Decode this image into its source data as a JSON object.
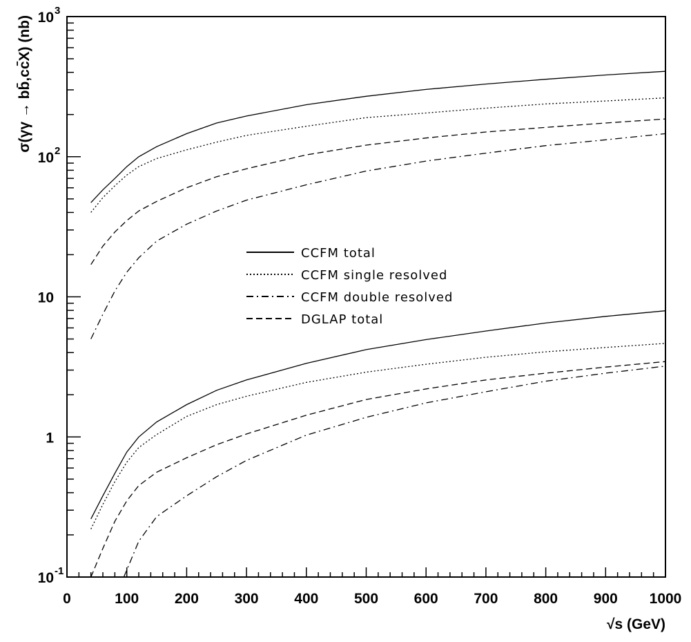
{
  "chart_data": {
    "type": "line",
    "xlabel": "√s (GeV)",
    "ylabel": "σ(γγ → bb̄,cc̄X) (nb)",
    "xlim": [
      0,
      1000
    ],
    "ylim": [
      0.1,
      1000
    ],
    "yscale": "log",
    "grid": false,
    "legend_position": "center",
    "x_ticks": [
      0,
      100,
      200,
      300,
      400,
      500,
      600,
      700,
      800,
      900,
      1000
    ],
    "x_tick_labels": [
      "0",
      "100",
      "200",
      "300",
      "400",
      "500",
      "600",
      "700",
      "800",
      "900",
      "1000"
    ],
    "y_ticks": [
      {
        "value": 0.1,
        "base": "10",
        "exp": "-1"
      },
      {
        "value": 1,
        "base": "1",
        "exp": ""
      },
      {
        "value": 10,
        "base": "10",
        "exp": ""
      },
      {
        "value": 100,
        "base": "10",
        "exp": "2"
      },
      {
        "value": 1000,
        "base": "10",
        "exp": "3"
      }
    ],
    "legend": [
      {
        "label": "CCFM total",
        "style": "solid"
      },
      {
        "label": "CCFM single resolved",
        "style": "dotted"
      },
      {
        "label": "CCFM double resolved",
        "style": "dashdot"
      },
      {
        "label": "DGLAP total",
        "style": "dashed"
      }
    ],
    "groups": [
      {
        "name": "upper",
        "series": [
          {
            "name": "CCFM total",
            "style": "solid",
            "x": [
              40,
              60,
              80,
              100,
              120,
              150,
              200,
              250,
              300,
              400,
              500,
              600,
              700,
              800,
              900,
              1000
            ],
            "y": [
              47,
              58,
              70,
              85,
              100,
              118,
              146,
              174,
              195,
              235,
              270,
              302,
              330,
              357,
              383,
              407
            ]
          },
          {
            "name": "CCFM single resolved",
            "style": "dotted",
            "x": [
              40,
              60,
              80,
              100,
              120,
              150,
              200,
              250,
              300,
              400,
              500,
              600,
              700,
              800,
              900,
              1000
            ],
            "y": [
              40,
              51,
              62,
              74,
              85,
              97,
              112,
              127,
              142,
              165,
              190,
              205,
              222,
              238,
              250,
              263
            ]
          },
          {
            "name": "DGLAP total",
            "style": "dashed",
            "x": [
              40,
              60,
              80,
              100,
              120,
              150,
              200,
              250,
              300,
              400,
              500,
              600,
              700,
              800,
              900,
              1000
            ],
            "y": [
              17,
              23,
              29,
              35,
              41,
              48,
              60,
              72,
              82,
              103,
              121,
              136,
              150,
              162,
              174,
              186
            ]
          },
          {
            "name": "CCFM double resolved",
            "style": "dashdot",
            "x": [
              40,
              60,
              80,
              100,
              120,
              150,
              200,
              250,
              300,
              400,
              500,
              600,
              700,
              800,
              900,
              1000
            ],
            "y": [
              5,
              7.5,
              11,
              15,
              19,
              25,
              33,
              41,
              49,
              63,
              79,
              93,
              106,
              120,
              132,
              146
            ]
          }
        ]
      },
      {
        "name": "lower",
        "series": [
          {
            "name": "CCFM total",
            "style": "solid",
            "x": [
              40,
              60,
              80,
              100,
              120,
              150,
              200,
              250,
              300,
              400,
              500,
              600,
              700,
              800,
              900,
              1000
            ],
            "y": [
              0.26,
              0.38,
              0.55,
              0.78,
              1.0,
              1.28,
              1.7,
              2.15,
              2.55,
              3.35,
              4.2,
              4.95,
              5.7,
              6.5,
              7.25,
              7.95
            ]
          },
          {
            "name": "CCFM single resolved",
            "style": "dotted",
            "x": [
              40,
              60,
              80,
              100,
              120,
              150,
              200,
              250,
              300,
              400,
              500,
              600,
              700,
              800,
              900,
              1000
            ],
            "y": [
              0.22,
              0.33,
              0.48,
              0.66,
              0.84,
              1.04,
              1.4,
              1.7,
              1.95,
              2.45,
              2.9,
              3.3,
              3.7,
              4.05,
              4.35,
              4.65
            ]
          },
          {
            "name": "DGLAP total",
            "style": "dashed",
            "x": [
              40,
              60,
              80,
              100,
              120,
              150,
              200,
              250,
              300,
              400,
              500,
              600,
              700,
              800,
              900,
              1000
            ],
            "y": [
              0.1,
              0.16,
              0.25,
              0.35,
              0.45,
              0.56,
              0.71,
              0.88,
              1.05,
              1.43,
              1.85,
              2.2,
              2.55,
              2.85,
              3.15,
              3.45
            ]
          },
          {
            "name": "CCFM double resolved",
            "style": "dashdot",
            "x": [
              95,
              120,
              150,
              200,
              250,
              300,
              400,
              500,
              600,
              700,
              800,
              900,
              1000
            ],
            "y": [
              0.1,
              0.18,
              0.27,
              0.38,
              0.52,
              0.68,
              1.03,
              1.38,
              1.75,
              2.1,
              2.5,
              2.85,
              3.2
            ]
          }
        ]
      }
    ]
  }
}
